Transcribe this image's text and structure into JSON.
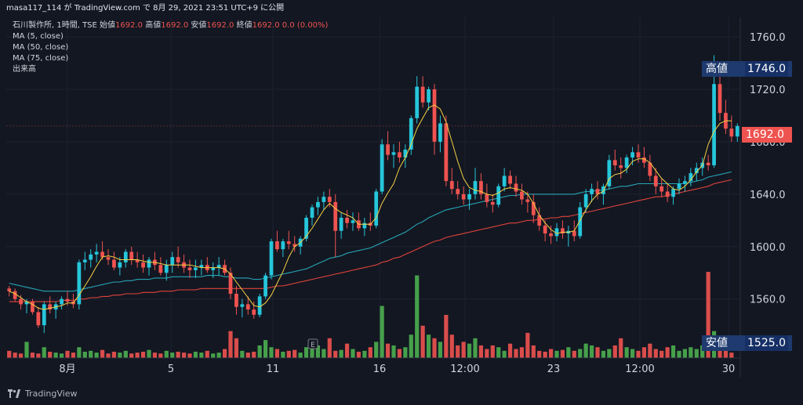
{
  "header": {
    "published_text": "masa117_114 が TradingView.com で 8月 29, 2021 23:51 UTC+9 に公開"
  },
  "legend": {
    "symbol_line": "石川製作所, 1時間, TSE",
    "ohlc": [
      {
        "label": "始値",
        "value": "1692.0"
      },
      {
        "label": "高値",
        "value": "1692.0"
      },
      {
        "label": "安値",
        "value": "1692.0"
      },
      {
        "label": "終値",
        "value": "1692.0"
      }
    ],
    "change": "0.0 (0.00%)",
    "indicators": [
      "MA (5, close)",
      "MA (50, close)",
      "MA (75, close)",
      "出来高"
    ]
  },
  "price_axis": {
    "ticks": [
      "1760.0",
      "1720.0",
      "1680.0",
      "1640.0",
      "1600.0",
      "1560.0"
    ],
    "high_label": "高値",
    "high_value": "1746.0",
    "current_value": "1692.0",
    "low_label": "安値",
    "low_value": "1525.0"
  },
  "time_axis": {
    "ticks": [
      "8月",
      "5",
      "11",
      "16",
      "12:00",
      "23",
      "12:00",
      "30"
    ]
  },
  "event_marker": "E",
  "footer": {
    "brand": "TradingView"
  },
  "colors": {
    "background": "#131722",
    "up": "#26c6da",
    "down": "#ef5350",
    "ma5": "#f5d142",
    "ma50": "#26a6b5",
    "ma75": "#e0433b",
    "volume_up": "#4caf50",
    "volume_down": "#ef5350",
    "high_label_bg": "#1e3a6e",
    "current_label_bg": "#ef5350"
  },
  "chart_data": {
    "type": "candlestick",
    "title": "石川製作所, 1時間, TSE",
    "ylim": [
      1515,
      1775
    ],
    "y_ticks": [
      1560,
      1600,
      1640,
      1680,
      1720,
      1760
    ],
    "x_ticks": [
      "8月",
      "5",
      "11",
      "16",
      "12:00",
      "23",
      "12:00",
      "30"
    ],
    "ohlc": [
      [
        1568,
        1570,
        1562,
        1566
      ],
      [
        1566,
        1568,
        1558,
        1560
      ],
      [
        1560,
        1563,
        1552,
        1556
      ],
      [
        1556,
        1560,
        1549,
        1558
      ],
      [
        1558,
        1560,
        1548,
        1550
      ],
      [
        1550,
        1554,
        1538,
        1540
      ],
      [
        1540,
        1558,
        1534,
        1556
      ],
      [
        1556,
        1562,
        1549,
        1552
      ],
      [
        1552,
        1558,
        1545,
        1556
      ],
      [
        1556,
        1562,
        1552,
        1560
      ],
      [
        1560,
        1566,
        1555,
        1558
      ],
      [
        1558,
        1564,
        1553,
        1556
      ],
      [
        1556,
        1590,
        1552,
        1588
      ],
      [
        1588,
        1596,
        1582,
        1590
      ],
      [
        1590,
        1598,
        1584,
        1594
      ],
      [
        1594,
        1602,
        1588,
        1596
      ],
      [
        1596,
        1604,
        1590,
        1592
      ],
      [
        1592,
        1598,
        1586,
        1590
      ],
      [
        1590,
        1596,
        1582,
        1584
      ],
      [
        1584,
        1592,
        1578,
        1588
      ],
      [
        1588,
        1598,
        1584,
        1596
      ],
      [
        1596,
        1600,
        1586,
        1590
      ],
      [
        1590,
        1596,
        1584,
        1588
      ],
      [
        1588,
        1594,
        1580,
        1584
      ],
      [
        1584,
        1592,
        1578,
        1590
      ],
      [
        1590,
        1596,
        1582,
        1586
      ],
      [
        1586,
        1592,
        1578,
        1580
      ],
      [
        1580,
        1590,
        1574,
        1586
      ],
      [
        1586,
        1596,
        1580,
        1592
      ],
      [
        1592,
        1600,
        1584,
        1588
      ],
      [
        1588,
        1594,
        1580,
        1584
      ],
      [
        1584,
        1590,
        1576,
        1582
      ],
      [
        1582,
        1590,
        1576,
        1584
      ],
      [
        1584,
        1590,
        1578,
        1586
      ],
      [
        1586,
        1592,
        1580,
        1582
      ],
      [
        1582,
        1588,
        1576,
        1584
      ],
      [
        1584,
        1592,
        1578,
        1586
      ],
      [
        1586,
        1590,
        1578,
        1580
      ],
      [
        1580,
        1584,
        1560,
        1564
      ],
      [
        1564,
        1570,
        1548,
        1554
      ],
      [
        1554,
        1560,
        1546,
        1556
      ],
      [
        1556,
        1562,
        1548,
        1552
      ],
      [
        1552,
        1558,
        1545,
        1548
      ],
      [
        1548,
        1564,
        1546,
        1562
      ],
      [
        1562,
        1580,
        1560,
        1578
      ],
      [
        1578,
        1606,
        1575,
        1604
      ],
      [
        1604,
        1612,
        1596,
        1598
      ],
      [
        1598,
        1606,
        1592,
        1604
      ],
      [
        1604,
        1612,
        1598,
        1602
      ],
      [
        1602,
        1608,
        1596,
        1600
      ],
      [
        1600,
        1608,
        1594,
        1606
      ],
      [
        1606,
        1624,
        1604,
        1622
      ],
      [
        1622,
        1632,
        1616,
        1630
      ],
      [
        1630,
        1638,
        1624,
        1634
      ],
      [
        1634,
        1642,
        1628,
        1638
      ],
      [
        1638,
        1644,
        1630,
        1634
      ],
      [
        1634,
        1640,
        1592,
        1612
      ],
      [
        1612,
        1626,
        1606,
        1622
      ],
      [
        1622,
        1628,
        1614,
        1618
      ],
      [
        1618,
        1626,
        1612,
        1620
      ],
      [
        1620,
        1626,
        1612,
        1614
      ],
      [
        1614,
        1622,
        1608,
        1618
      ],
      [
        1618,
        1626,
        1612,
        1616
      ],
      [
        1616,
        1644,
        1614,
        1642
      ],
      [
        1642,
        1682,
        1640,
        1678
      ],
      [
        1678,
        1688,
        1666,
        1670
      ],
      [
        1670,
        1678,
        1660,
        1672
      ],
      [
        1672,
        1680,
        1664,
        1668
      ],
      [
        1668,
        1678,
        1660,
        1674
      ],
      [
        1674,
        1700,
        1670,
        1698
      ],
      [
        1698,
        1730,
        1694,
        1722
      ],
      [
        1722,
        1730,
        1706,
        1710
      ],
      [
        1710,
        1722,
        1704,
        1720
      ],
      [
        1720,
        1724,
        1670,
        1680
      ],
      [
        1680,
        1700,
        1672,
        1694
      ],
      [
        1694,
        1700,
        1646,
        1650
      ],
      [
        1650,
        1660,
        1640,
        1644
      ],
      [
        1644,
        1650,
        1636,
        1640
      ],
      [
        1640,
        1646,
        1632,
        1636
      ],
      [
        1636,
        1644,
        1628,
        1640
      ],
      [
        1640,
        1660,
        1636,
        1650
      ],
      [
        1650,
        1656,
        1636,
        1640
      ],
      [
        1640,
        1648,
        1630,
        1634
      ],
      [
        1634,
        1640,
        1626,
        1632
      ],
      [
        1632,
        1648,
        1630,
        1646
      ],
      [
        1646,
        1660,
        1642,
        1654
      ],
      [
        1654,
        1658,
        1644,
        1648
      ],
      [
        1648,
        1654,
        1638,
        1642
      ],
      [
        1642,
        1648,
        1632,
        1636
      ],
      [
        1636,
        1642,
        1626,
        1634
      ],
      [
        1634,
        1640,
        1618,
        1624
      ],
      [
        1624,
        1630,
        1612,
        1616
      ],
      [
        1616,
        1620,
        1604,
        1610
      ],
      [
        1610,
        1616,
        1602,
        1608
      ],
      [
        1608,
        1618,
        1604,
        1614
      ],
      [
        1614,
        1620,
        1606,
        1610
      ],
      [
        1610,
        1616,
        1600,
        1612
      ],
      [
        1612,
        1620,
        1604,
        1608
      ],
      [
        1608,
        1634,
        1606,
        1630
      ],
      [
        1630,
        1644,
        1626,
        1640
      ],
      [
        1640,
        1648,
        1634,
        1644
      ],
      [
        1644,
        1650,
        1636,
        1640
      ],
      [
        1640,
        1648,
        1632,
        1646
      ],
      [
        1646,
        1670,
        1644,
        1666
      ],
      [
        1666,
        1674,
        1658,
        1662
      ],
      [
        1662,
        1668,
        1652,
        1660
      ],
      [
        1660,
        1670,
        1656,
        1668
      ],
      [
        1668,
        1676,
        1662,
        1672
      ],
      [
        1672,
        1678,
        1664,
        1668
      ],
      [
        1668,
        1676,
        1660,
        1664
      ],
      [
        1664,
        1670,
        1650,
        1654
      ],
      [
        1654,
        1660,
        1640,
        1646
      ],
      [
        1646,
        1652,
        1638,
        1642
      ],
      [
        1642,
        1648,
        1634,
        1638
      ],
      [
        1638,
        1646,
        1632,
        1644
      ],
      [
        1644,
        1652,
        1640,
        1648
      ],
      [
        1648,
        1654,
        1642,
        1650
      ],
      [
        1650,
        1660,
        1646,
        1656
      ],
      [
        1656,
        1664,
        1650,
        1660
      ],
      [
        1660,
        1668,
        1654,
        1664
      ],
      [
        1664,
        1670,
        1658,
        1662
      ],
      [
        1662,
        1746,
        1660,
        1724
      ],
      [
        1724,
        1730,
        1696,
        1702
      ],
      [
        1702,
        1712,
        1686,
        1690
      ],
      [
        1690,
        1700,
        1680,
        1684
      ],
      [
        1684,
        1694,
        1680,
        1692
      ]
    ],
    "ma5": [
      1566,
      1564,
      1561,
      1558,
      1556,
      1553,
      1552,
      1553,
      1554,
      1555,
      1557,
      1557,
      1563,
      1570,
      1577,
      1585,
      1592,
      1593,
      1592,
      1590,
      1590,
      1590,
      1590,
      1589,
      1588,
      1588,
      1587,
      1586,
      1586,
      1586,
      1586,
      1586,
      1585,
      1584,
      1584,
      1584,
      1584,
      1583,
      1579,
      1573,
      1567,
      1561,
      1555,
      1554,
      1557,
      1563,
      1572,
      1581,
      1592,
      1600,
      1603,
      1608,
      1614,
      1621,
      1628,
      1633,
      1629,
      1626,
      1624,
      1622,
      1617,
      1617,
      1617,
      1622,
      1633,
      1641,
      1648,
      1660,
      1668,
      1678,
      1690,
      1698,
      1706,
      1708,
      1705,
      1695,
      1680,
      1665,
      1652,
      1645,
      1643,
      1642,
      1640,
      1639,
      1641,
      1644,
      1645,
      1644,
      1643,
      1640,
      1633,
      1624,
      1618,
      1613,
      1610,
      1611,
      1611,
      1612,
      1620,
      1628,
      1635,
      1640,
      1642,
      1652,
      1655,
      1656,
      1659,
      1665,
      1667,
      1667,
      1664,
      1658,
      1652,
      1648,
      1644,
      1643,
      1646,
      1651,
      1657,
      1662,
      1678,
      1688,
      1694,
      1696,
      1696
    ],
    "ma50": [
      1572,
      1571,
      1570,
      1569,
      1568,
      1567,
      1566,
      1566,
      1566,
      1566,
      1566,
      1566,
      1567,
      1568,
      1569,
      1570,
      1571,
      1572,
      1573,
      1573,
      1574,
      1574,
      1575,
      1575,
      1575,
      1576,
      1576,
      1576,
      1577,
      1577,
      1577,
      1577,
      1577,
      1577,
      1578,
      1578,
      1578,
      1577,
      1577,
      1576,
      1576,
      1576,
      1575,
      1575,
      1576,
      1577,
      1578,
      1579,
      1580,
      1581,
      1582,
      1583,
      1585,
      1587,
      1589,
      1591,
      1592,
      1593,
      1595,
      1596,
      1597,
      1598,
      1599,
      1601,
      1603,
      1605,
      1607,
      1609,
      1611,
      1614,
      1617,
      1619,
      1622,
      1624,
      1626,
      1628,
      1629,
      1630,
      1631,
      1632,
      1633,
      1634,
      1635,
      1636,
      1637,
      1638,
      1639,
      1639,
      1640,
      1640,
      1640,
      1640,
      1640,
      1640,
      1640,
      1640,
      1640,
      1640,
      1641,
      1642,
      1642,
      1643,
      1643,
      1644,
      1645,
      1646,
      1646,
      1647,
      1648,
      1648,
      1648,
      1648,
      1648,
      1648,
      1648,
      1648,
      1648,
      1649,
      1650,
      1651,
      1653,
      1654,
      1655,
      1656,
      1657
    ],
    "ma75": [
      1558,
      1558,
      1558,
      1558,
      1558,
      1558,
      1558,
      1558,
      1558,
      1559,
      1559,
      1559,
      1560,
      1560,
      1561,
      1561,
      1562,
      1562,
      1563,
      1563,
      1564,
      1564,
      1564,
      1565,
      1565,
      1565,
      1566,
      1566,
      1566,
      1567,
      1567,
      1567,
      1567,
      1568,
      1568,
      1568,
      1568,
      1568,
      1568,
      1568,
      1568,
      1568,
      1568,
      1568,
      1568,
      1569,
      1570,
      1570,
      1571,
      1572,
      1573,
      1574,
      1575,
      1576,
      1577,
      1578,
      1579,
      1580,
      1581,
      1582,
      1583,
      1584,
      1585,
      1586,
      1588,
      1589,
      1591,
      1592,
      1594,
      1596,
      1598,
      1600,
      1602,
      1604,
      1605,
      1607,
      1608,
      1609,
      1610,
      1611,
      1612,
      1613,
      1614,
      1615,
      1616,
      1617,
      1618,
      1618,
      1619,
      1620,
      1620,
      1621,
      1621,
      1622,
      1622,
      1623,
      1623,
      1624,
      1625,
      1626,
      1627,
      1628,
      1629,
      1630,
      1631,
      1632,
      1633,
      1634,
      1635,
      1636,
      1637,
      1638,
      1638,
      1639,
      1640,
      1641,
      1642,
      1643,
      1644,
      1645,
      1646,
      1648,
      1649,
      1650,
      1651
    ],
    "volume": [
      8,
      6,
      5,
      18,
      6,
      5,
      12,
      7,
      6,
      5,
      8,
      6,
      12,
      7,
      8,
      6,
      9,
      5,
      7,
      6,
      8,
      5,
      6,
      7,
      9,
      6,
      5,
      8,
      6,
      7,
      6,
      5,
      7,
      6,
      8,
      5,
      6,
      10,
      30,
      22,
      8,
      6,
      7,
      14,
      20,
      12,
      10,
      7,
      8,
      9,
      6,
      12,
      18,
      14,
      10,
      22,
      8,
      9,
      16,
      10,
      7,
      8,
      12,
      18,
      58,
      16,
      14,
      10,
      12,
      26,
      92,
      36,
      26,
      22,
      18,
      48,
      26,
      14,
      18,
      16,
      22,
      14,
      10,
      14,
      12,
      8,
      16,
      10,
      12,
      28,
      14,
      8,
      7,
      10,
      8,
      9,
      12,
      8,
      10,
      16,
      14,
      12,
      8,
      10,
      14,
      22,
      12,
      10,
      8,
      12,
      16,
      10,
      8,
      12,
      14,
      8,
      10,
      12,
      10,
      14,
      96,
      30,
      20,
      12,
      6
    ]
  }
}
